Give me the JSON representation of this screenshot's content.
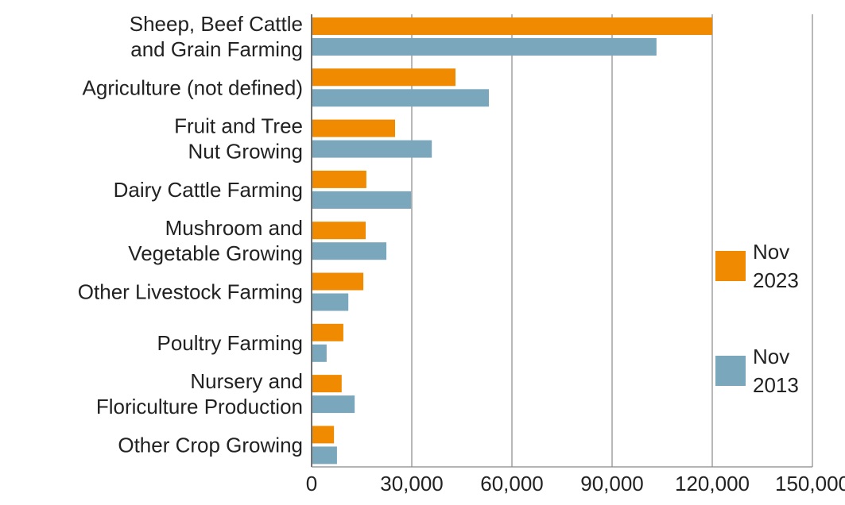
{
  "chart_data": {
    "type": "bar",
    "orientation": "horizontal",
    "title": "",
    "xlabel": "",
    "ylabel": "",
    "categories": [
      [
        "Sheep, Beef Cattle",
        "and Grain Farming"
      ],
      [
        "Agriculture (not defined)"
      ],
      [
        "Fruit and Tree",
        "Nut Growing"
      ],
      [
        "Dairy Cattle Farming"
      ],
      [
        "Mushroom and",
        "Vegetable Growing"
      ],
      [
        "Other Livestock Farming"
      ],
      [
        "Poultry Farming"
      ],
      [
        "Nursery and",
        "Floriculture Production"
      ],
      [
        "Other Crop Growing"
      ]
    ],
    "series": [
      {
        "name": "Nov 2023",
        "legend_lines": [
          "Nov",
          "2023"
        ],
        "color": "#F08A00",
        "values": [
          120000,
          43100,
          25000,
          16400,
          16200,
          15500,
          9500,
          9000,
          6700
        ]
      },
      {
        "name": "Nov 2013",
        "legend_lines": [
          "Nov",
          "2013"
        ],
        "color": "#7BA7BC",
        "values": [
          103300,
          53100,
          36000,
          29800,
          22400,
          11000,
          4500,
          12900,
          7600
        ]
      }
    ],
    "xlim": [
      0,
      150000
    ],
    "xticks": [
      0,
      30000,
      60000,
      90000,
      120000,
      150000
    ],
    "xtick_labels": [
      "0",
      "30,000",
      "60,000",
      "90,000",
      "120,000",
      "150,000"
    ],
    "grid": "vertical",
    "legend": "right"
  }
}
